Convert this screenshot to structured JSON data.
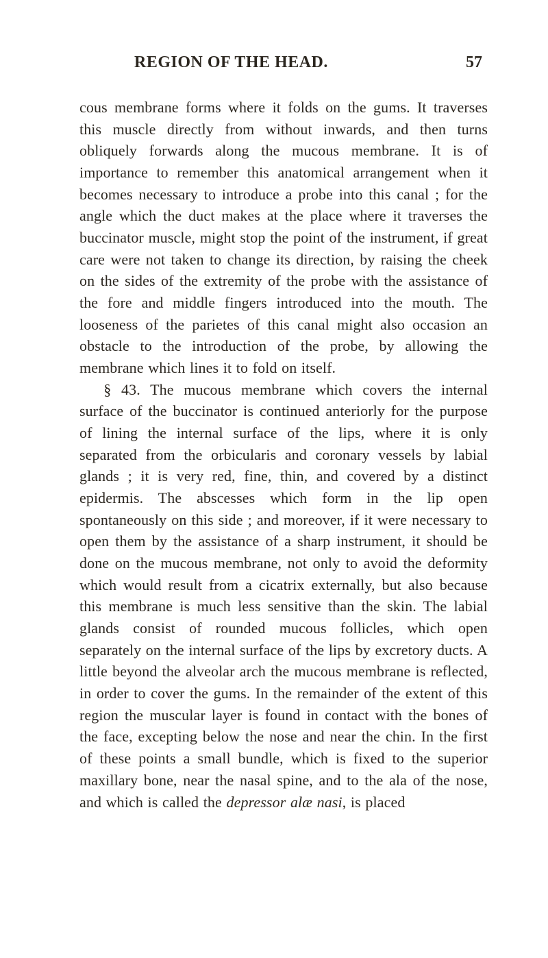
{
  "header": {
    "running_title": "REGION OF THE HEAD.",
    "page_number": "57"
  },
  "body": {
    "p1": "cous membrane forms where it folds on the gums. It traverses this muscle directly from without inwards, and then turns obliquely forwards along the mucous membrane. It is of importance to remember this anatomical arrangement when it becomes necessary to introduce a probe into this canal ; for the angle which the duct makes at the place where it traverses the buccinator muscle, might stop the point of the instrument, if great care were not taken to change its direction, by raising the cheek on the sides of the extremity of the probe with the assistance of the fore and middle fingers introduced into the mouth. The looseness of the parietes of this canal might also occasion an obstacle to the introduction of the probe, by allowing the membrane which lines it to fold on itself.",
    "p2_a": "§ 43. The mucous membrane which covers the internal surface of the buccinator is continued anteriorly for the purpose of lining the internal surface of the lips, where it is only separated from the orbicularis and coronary vessels by labial glands ; it is very red, fine, thin, and covered by a distinct epidermis. The abscesses which form in the lip open spontaneously on this side ; and moreover, if it were necessary to open them by the assistance of a sharp instrument, it should be done on the mucous membrane, not only to avoid the deformity which would result from a cicatrix externally, but also because this membrane is much less sensitive than the skin. The labial glands consist of rounded mucous follicles, which open separately on the internal surface of the lips by excretory ducts. A little beyond the alveolar arch the mucous membrane is reflected, in order to cover the gums. In the remainder of the extent of this region the muscular layer is found in contact with the bones of the face, excepting below the nose and near the chin. In the first of these points a small bundle, which is fixed to the superior maxillary bone, near the nasal spine, and to the ala of the nose, and which is called the ",
    "p2_i": "depressor alæ nasi",
    "p2_b": ", is placed"
  },
  "style": {
    "text_color": "#2c2720",
    "background_color": "#ffffff",
    "header_fontsize": 24,
    "body_fontsize": 22,
    "line_height": 1.44,
    "font_family": "Georgia, Times New Roman, serif"
  }
}
